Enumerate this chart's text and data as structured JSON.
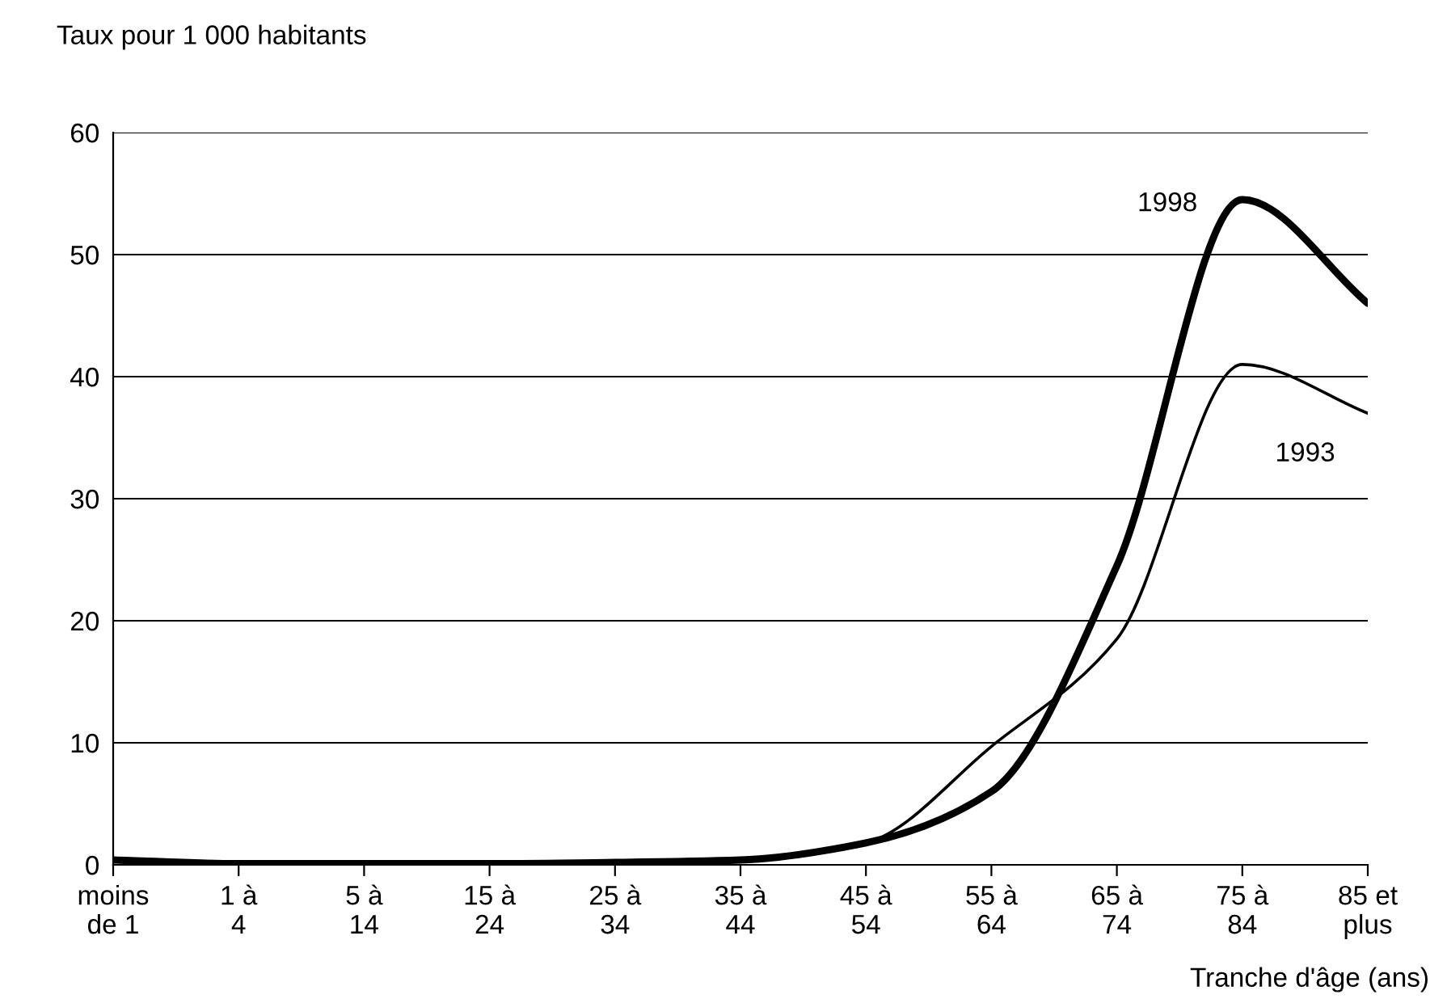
{
  "chart_data": {
    "type": "line",
    "ylabel": "Taux pour 1 000 habitants",
    "xlabel": "Tranche d'âge (ans)",
    "categories": [
      "moins\nde 1",
      "1 à\n4",
      "5 à\n14",
      "15 à\n24",
      "25 à\n34",
      "35 à\n44",
      "45 à\n54",
      "55 à\n64",
      "65 à\n74",
      "75 à\n84",
      "85 et\nplus"
    ],
    "series": [
      {
        "name": "1998",
        "color": "#000000",
        "values": [
          0.4,
          0.1,
          0.1,
          0.1,
          0.2,
          0.4,
          1.8,
          6,
          24.5,
          54.5,
          46
        ]
      },
      {
        "name": "1993",
        "color": "#000000",
        "values": [
          0.3,
          0.1,
          0.1,
          0.1,
          0.2,
          0.3,
          1.8,
          9.7,
          18.5,
          41,
          37
        ]
      }
    ],
    "ylim": [
      0,
      60
    ],
    "yticks": [
      0,
      10,
      20,
      30,
      40,
      50,
      60
    ],
    "grid": "y",
    "legend": false,
    "marker": "none",
    "line_style": "solid"
  }
}
